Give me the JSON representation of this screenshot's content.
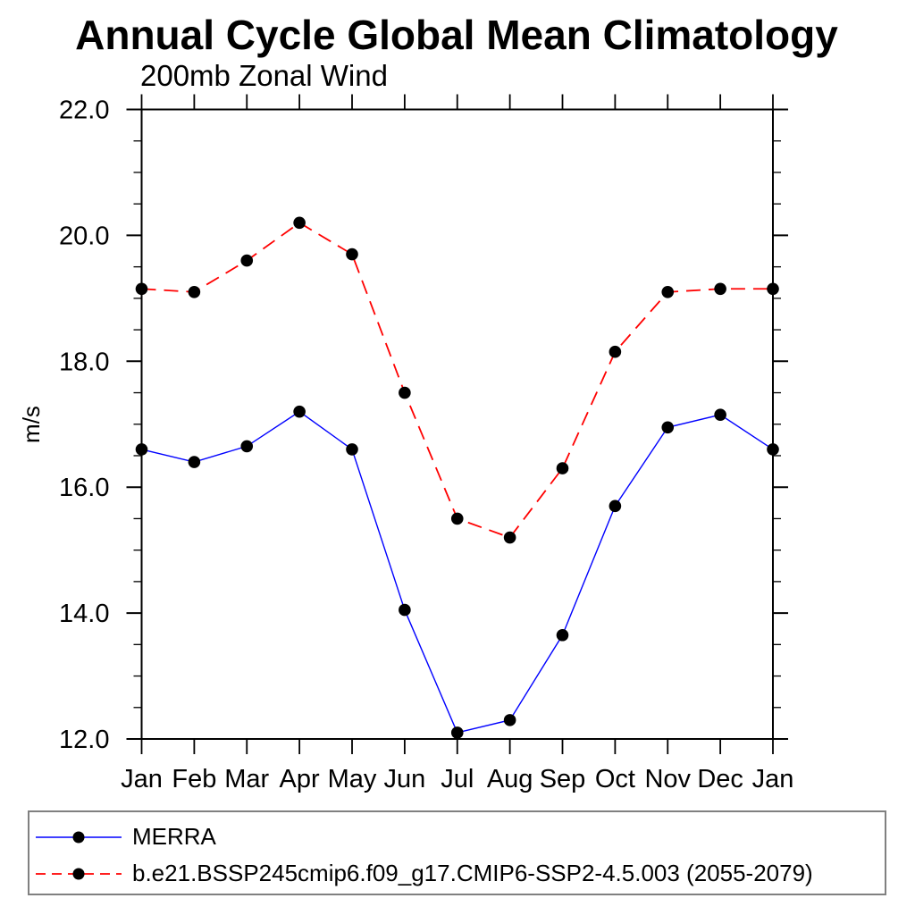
{
  "title": "Annual Cycle Global Mean Climatology",
  "subtitle": "200mb Zonal Wind",
  "chart_data": {
    "type": "line",
    "title": "Annual Cycle Global Mean Climatology",
    "subtitle": "200mb Zonal Wind",
    "x": [
      "Jan",
      "Feb",
      "Mar",
      "Apr",
      "May",
      "Jun",
      "Jul",
      "Aug",
      "Sep",
      "Oct",
      "Nov",
      "Dec",
      "Jan"
    ],
    "xlabel": "",
    "ylabel": "m/s",
    "ylim": [
      12,
      22
    ],
    "ytick_major": [
      12,
      14,
      16,
      18,
      20,
      22
    ],
    "ytick_major_labels": [
      "12.0",
      "14.0",
      "16.0",
      "18.0",
      "20.0",
      "22.0"
    ],
    "ytick_minor_step": 0.5,
    "grid": false,
    "legend_position": "bottom-left",
    "series": [
      {
        "name": "MERRA",
        "color": "#0000ff",
        "line_style": "solid",
        "marker": "filled-circle",
        "marker_color": "#000000",
        "values": [
          16.6,
          16.4,
          16.65,
          17.2,
          16.6,
          14.05,
          12.1,
          12.3,
          13.65,
          15.7,
          16.95,
          17.15,
          16.6
        ]
      },
      {
        "name": "b.e21.BSSP245cmip6.f09_g17.CMIP6-SSP2-4.5.003 (2055-2079)",
        "color": "#ff0000",
        "line_style": "dashed",
        "marker": "filled-circle",
        "marker_color": "#000000",
        "values": [
          19.15,
          19.1,
          19.6,
          20.2,
          19.7,
          17.5,
          15.5,
          15.2,
          16.3,
          18.15,
          19.1,
          19.15,
          19.15
        ]
      }
    ]
  },
  "colors": {
    "axis": "#000000",
    "legend_border": "#808080",
    "background": "#ffffff"
  }
}
